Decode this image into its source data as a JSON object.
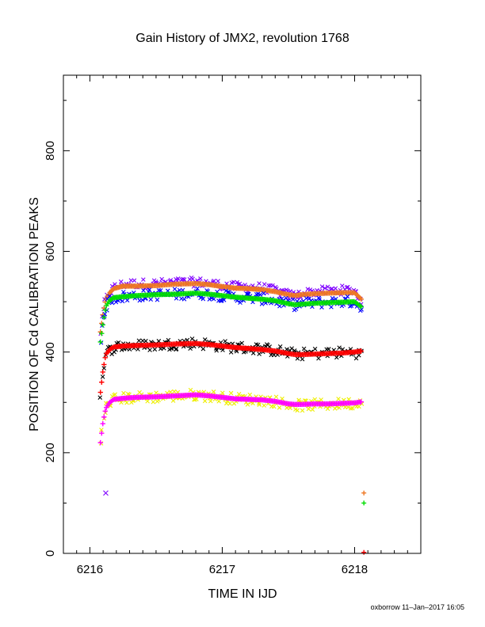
{
  "chart_data": {
    "type": "scatter",
    "title": "Gain History of JMX2, revolution 1768",
    "xlabel": "TIME IN IJD",
    "ylabel": "POSITION OF Cd CALIBRATION PEAKS",
    "footer": "oxborrow 11–Jan–2017 16:05",
    "xlim": [
      6215.8,
      6218.5
    ],
    "ylim": [
      0,
      950
    ],
    "x_ticks": [
      6216,
      6217,
      6218
    ],
    "x_tick_labels": [
      "6216",
      "6217",
      "6218"
    ],
    "y_ticks": [
      0,
      200,
      400,
      600,
      800
    ],
    "y_tick_labels": [
      "0",
      "200",
      "400",
      "600",
      "800"
    ],
    "grid": false,
    "legend": "none",
    "series": [
      {
        "color": "#7f00ff",
        "marker": "x",
        "scatter": 9,
        "x": [
          6216.08,
          6216.1,
          6216.12,
          6216.15,
          6216.18,
          6216.25,
          6216.35,
          6216.5,
          6216.65,
          6216.8,
          6216.9,
          6217.0,
          6217.1,
          6217.2,
          6217.3,
          6217.4,
          6217.5,
          6217.55,
          6217.6,
          6217.7,
          6217.8,
          6217.9,
          6218.0,
          6218.05
        ],
        "y": [
          440,
          478,
          505,
          518,
          528,
          535,
          536,
          536,
          538,
          539,
          537,
          533,
          530,
          530,
          528,
          522,
          514,
          512,
          516,
          520,
          522,
          523,
          523,
          503
        ]
      },
      {
        "color": "#ee7722",
        "marker": "+",
        "scatter": 0,
        "x": [
          6216.08,
          6216.1,
          6216.12,
          6216.15,
          6216.18,
          6216.25,
          6216.35,
          6216.5,
          6216.65,
          6216.8,
          6216.9,
          6217.0,
          6217.1,
          6217.2,
          6217.3,
          6217.4,
          6217.5,
          6217.55,
          6217.6,
          6217.7,
          6217.8,
          6217.9,
          6218.0,
          6218.05
        ],
        "y": [
          440,
          478,
          505,
          518,
          526,
          531,
          531,
          532,
          535,
          536,
          534,
          530,
          527,
          526,
          524,
          520,
          514,
          512,
          514,
          516,
          517,
          518,
          518,
          505
        ]
      },
      {
        "color": "#0000ff",
        "marker": "x",
        "scatter": 11,
        "x": [
          6216.08,
          6216.1,
          6216.12,
          6216.15,
          6216.18,
          6216.25,
          6216.35,
          6216.5,
          6216.65,
          6216.8,
          6216.9,
          6217.0,
          6217.1,
          6217.2,
          6217.3,
          6217.4,
          6217.5,
          6217.55,
          6217.6,
          6217.7,
          6217.8,
          6217.9,
          6218.0,
          6218.05
        ],
        "y": [
          420,
          458,
          490,
          503,
          508,
          510,
          512,
          514,
          515,
          517,
          515,
          512,
          509,
          508,
          506,
          502,
          495,
          494,
          496,
          498,
          499,
          500,
          500,
          485
        ]
      },
      {
        "color": "#00dd00",
        "marker": "+",
        "scatter": 0,
        "x": [
          6216.08,
          6216.1,
          6216.12,
          6216.15,
          6216.18,
          6216.25,
          6216.35,
          6216.5,
          6216.65,
          6216.8,
          6216.9,
          6217.0,
          6217.1,
          6217.2,
          6217.3,
          6217.4,
          6217.5,
          6217.55,
          6217.6,
          6217.7,
          6217.8,
          6217.9,
          6218.0,
          6218.05
        ],
        "y": [
          420,
          458,
          490,
          503,
          508,
          510,
          512,
          514,
          515,
          517,
          515,
          512,
          509,
          507,
          505,
          502,
          496,
          494,
          495,
          497,
          498,
          499,
          500,
          490
        ]
      },
      {
        "color": "#000000",
        "marker": "x",
        "scatter": 11,
        "x": [
          6216.08,
          6216.1,
          6216.12,
          6216.15,
          6216.18,
          6216.25,
          6216.35,
          6216.5,
          6216.65,
          6216.8,
          6216.9,
          6217.0,
          6217.1,
          6217.2,
          6217.3,
          6217.4,
          6217.5,
          6217.55,
          6217.6,
          6217.7,
          6217.8,
          6217.9,
          6218.0,
          6218.05
        ],
        "y": [
          320,
          365,
          395,
          405,
          410,
          412,
          413,
          414,
          416,
          418,
          415,
          412,
          409,
          408,
          406,
          403,
          398,
          396,
          396,
          397,
          398,
          399,
          400,
          395
        ]
      },
      {
        "color": "#ff0000",
        "marker": "+",
        "scatter": 0,
        "x": [
          6216.08,
          6216.1,
          6216.12,
          6216.15,
          6216.18,
          6216.25,
          6216.35,
          6216.5,
          6216.65,
          6216.8,
          6216.9,
          6217.0,
          6217.1,
          6217.2,
          6217.3,
          6217.4,
          6217.5,
          6217.55,
          6217.6,
          6217.7,
          6217.8,
          6217.9,
          6218.0,
          6218.05
        ],
        "y": [
          320,
          365,
          395,
          405,
          410,
          412,
          413,
          414,
          416,
          417,
          415,
          412,
          409,
          407,
          405,
          402,
          397,
          395,
          395,
          396,
          397,
          398,
          400,
          402
        ]
      },
      {
        "color": "#eeee00",
        "marker": "x",
        "scatter": 11,
        "x": [
          6216.08,
          6216.1,
          6216.12,
          6216.15,
          6216.18,
          6216.25,
          6216.35,
          6216.5,
          6216.65,
          6216.8,
          6216.9,
          6217.0,
          6217.1,
          6217.2,
          6217.3,
          6217.4,
          6217.5,
          6217.55,
          6217.6,
          6217.7,
          6217.8,
          6217.9,
          6218.0,
          6218.05
        ],
        "y": [
          220,
          262,
          288,
          300,
          306,
          308,
          310,
          311,
          313,
          315,
          313,
          310,
          307,
          306,
          305,
          302,
          296,
          294,
          294,
          295,
          296,
          297,
          298,
          300
        ]
      },
      {
        "color": "#ff00ff",
        "marker": "+",
        "scatter": 0,
        "x": [
          6216.08,
          6216.1,
          6216.12,
          6216.15,
          6216.18,
          6216.25,
          6216.35,
          6216.5,
          6216.65,
          6216.8,
          6216.9,
          6217.0,
          6217.1,
          6217.2,
          6217.3,
          6217.4,
          6217.5,
          6217.55,
          6217.6,
          6217.7,
          6217.8,
          6217.9,
          6218.0,
          6218.05
        ],
        "y": [
          220,
          262,
          288,
          300,
          306,
          308,
          310,
          311,
          313,
          315,
          313,
          310,
          307,
          306,
          305,
          302,
          297,
          296,
          296,
          297,
          297,
          298,
          299,
          301
        ]
      }
    ],
    "outliers": [
      {
        "x": 6216.12,
        "y": 120,
        "color": "#7f00ff",
        "marker": "x"
      },
      {
        "x": 6218.07,
        "y": 120,
        "color": "#ee7722",
        "marker": "+"
      },
      {
        "x": 6218.07,
        "y": 100,
        "color": "#00dd00",
        "marker": "+"
      },
      {
        "x": 6218.07,
        "y": 2,
        "color": "#ff0000",
        "marker": "+"
      }
    ]
  }
}
